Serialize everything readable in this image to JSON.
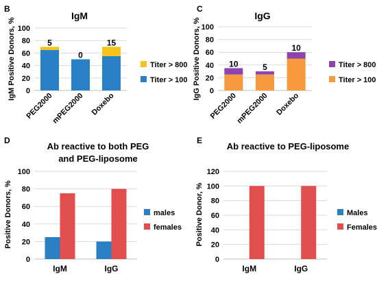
{
  "panels": [
    {
      "letter": "B"
    },
    {
      "letter": "C"
    },
    {
      "letter": "D"
    },
    {
      "letter": "E"
    }
  ],
  "colors": {
    "blue": "#2980c4",
    "yellow": "#f5c31c",
    "orange": "#f79a3e",
    "purple": "#8e44ad",
    "red": "#e04e4e"
  },
  "chart_data": [
    {
      "type": "bar",
      "stacked": true,
      "title": "IgM",
      "xlabel": "",
      "ylabel": "IgM Positive Donors, %",
      "ylim": [
        0,
        100
      ],
      "yticks": [
        0,
        20,
        40,
        60,
        80,
        100
      ],
      "grid": true,
      "legend_position": "right",
      "categories": [
        "PEG2000",
        "mPEG2000",
        "Doxebo"
      ],
      "series": [
        {
          "name": "Titer > 100",
          "color": "#2980c4",
          "values": [
            65,
            50,
            55
          ]
        },
        {
          "name": "Titer > 800",
          "color": "#f5c31c",
          "values": [
            5,
            0,
            15
          ]
        }
      ],
      "data_labels": [
        "5",
        "0",
        "15"
      ]
    },
    {
      "type": "bar",
      "stacked": true,
      "title": "IgG",
      "xlabel": "",
      "ylabel": "IgG Positive Donors, %",
      "ylim": [
        0,
        100
      ],
      "yticks": [
        0,
        20,
        40,
        60,
        80,
        100
      ],
      "grid": true,
      "legend_position": "right",
      "categories": [
        "PEG2000",
        "mPEG2000",
        "Doxebo"
      ],
      "series": [
        {
          "name": "Titer > 100",
          "color": "#f79a3e",
          "values": [
            25,
            25,
            50
          ]
        },
        {
          "name": "Titer > 800",
          "color": "#8e44ad",
          "values": [
            10,
            5,
            10
          ]
        }
      ],
      "data_labels": [
        "10",
        "5",
        "10"
      ]
    },
    {
      "type": "bar",
      "stacked": false,
      "title": "Ab reactive to both PEG and PEG-liposome",
      "title_lines": [
        "Ab reactive to both PEG",
        "and PEG-liposome"
      ],
      "xlabel": "",
      "ylabel": "Positive Donors, %",
      "ylim": [
        0,
        100
      ],
      "yticks": [
        0,
        20,
        40,
        60,
        80,
        100
      ],
      "grid": true,
      "legend_position": "right",
      "categories": [
        "IgM",
        "IgG"
      ],
      "series": [
        {
          "name": "males",
          "color": "#2980c4",
          "values": [
            25,
            20
          ]
        },
        {
          "name": "females",
          "color": "#e04e4e",
          "values": [
            75,
            80
          ]
        }
      ]
    },
    {
      "type": "bar",
      "stacked": false,
      "title": "Ab reactive to PEG-liposome",
      "title_lines": [
        "Ab reactive to PEG-liposome"
      ],
      "xlabel": "",
      "ylabel": "Positive Donor, %",
      "ylim": [
        0,
        120
      ],
      "yticks": [
        0,
        20,
        40,
        60,
        80,
        100,
        120
      ],
      "grid": true,
      "legend_position": "right",
      "categories": [
        "IgM",
        "IgG"
      ],
      "series": [
        {
          "name": "Males",
          "color": "#2980c4",
          "values": [
            0,
            0
          ]
        },
        {
          "name": "Females",
          "color": "#e04e4e",
          "values": [
            100,
            100
          ]
        }
      ]
    }
  ]
}
